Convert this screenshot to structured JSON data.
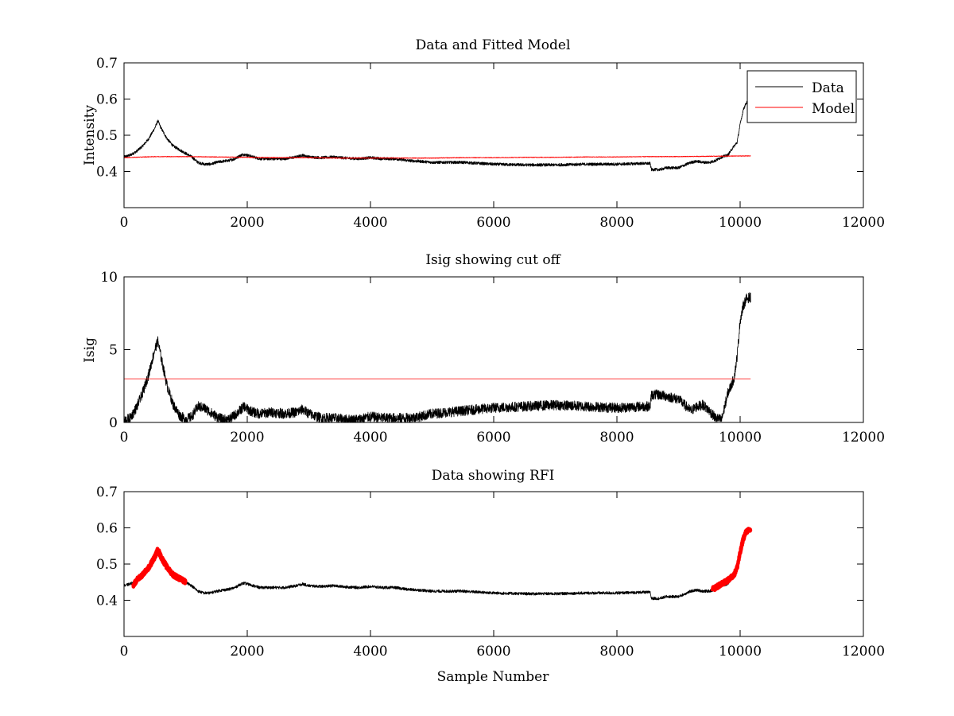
{
  "figure": {
    "colors": {
      "data": "#000000",
      "model": "#ff0000",
      "rfi": "#ff0000",
      "axes": "#000000",
      "background": "#ffffff"
    }
  },
  "chart_data": [
    {
      "type": "line",
      "title": "Data and Fitted Model",
      "xlabel": "",
      "ylabel": "Intensity",
      "xlim": [
        0,
        12000
      ],
      "ylim": [
        0.3,
        0.7
      ],
      "xticks": [
        0,
        2000,
        4000,
        6000,
        8000,
        10000,
        12000
      ],
      "yticks": [
        0.4,
        0.5,
        0.6,
        0.7
      ],
      "ytick_labels": [
        "0.4",
        "0.5",
        "0.6",
        "0.7"
      ],
      "legend": {
        "position": "top-right",
        "entries": [
          "Data",
          "Model"
        ]
      },
      "series": [
        {
          "name": "Data",
          "color": "#000000",
          "noise": 0.004,
          "x": [
            0,
            100,
            200,
            300,
            400,
            500,
            550,
            600,
            700,
            800,
            900,
            1000,
            1100,
            1200,
            1300,
            1400,
            1500,
            1600,
            1700,
            1800,
            1900,
            1950,
            2000,
            2100,
            2200,
            2400,
            2600,
            2800,
            2900,
            3000,
            3200,
            3400,
            3600,
            3800,
            4000,
            4200,
            4400,
            4600,
            4800,
            5000,
            5500,
            6000,
            6500,
            7000,
            7500,
            8000,
            8400,
            8540,
            8560,
            8700,
            8800,
            9000,
            9200,
            9300,
            9400,
            9500,
            9600,
            9700,
            9800,
            9900,
            9950,
            10000,
            10050,
            10100,
            10170
          ],
          "y": [
            0.44,
            0.445,
            0.455,
            0.47,
            0.49,
            0.52,
            0.54,
            0.52,
            0.49,
            0.47,
            0.46,
            0.45,
            0.44,
            0.425,
            0.42,
            0.42,
            0.425,
            0.428,
            0.43,
            0.435,
            0.445,
            0.447,
            0.445,
            0.44,
            0.435,
            0.435,
            0.435,
            0.44,
            0.445,
            0.44,
            0.438,
            0.44,
            0.437,
            0.435,
            0.438,
            0.435,
            0.435,
            0.43,
            0.428,
            0.425,
            0.425,
            0.42,
            0.418,
            0.418,
            0.42,
            0.42,
            0.422,
            0.422,
            0.405,
            0.405,
            0.41,
            0.41,
            0.425,
            0.428,
            0.425,
            0.425,
            0.43,
            0.44,
            0.445,
            0.47,
            0.48,
            0.53,
            0.57,
            0.59,
            0.595
          ]
        },
        {
          "name": "Model",
          "color": "#ff0000",
          "noise": 0.001,
          "x": [
            0,
            500,
            1000,
            1500,
            2000,
            2500,
            3000,
            3500,
            4000,
            4500,
            5000,
            5500,
            6000,
            6500,
            7000,
            7500,
            8000,
            8500,
            9000,
            9500,
            10170
          ],
          "y": [
            0.438,
            0.441,
            0.441,
            0.44,
            0.439,
            0.438,
            0.438,
            0.437,
            0.437,
            0.437,
            0.437,
            0.438,
            0.438,
            0.439,
            0.439,
            0.44,
            0.44,
            0.441,
            0.441,
            0.442,
            0.443
          ]
        }
      ]
    },
    {
      "type": "line",
      "title": "Isig showing cut off",
      "xlabel": "",
      "ylabel": "Isig",
      "xlim": [
        0,
        12000
      ],
      "ylim": [
        0,
        10
      ],
      "xticks": [
        0,
        2000,
        4000,
        6000,
        8000,
        10000,
        12000
      ],
      "yticks": [
        0,
        5,
        10
      ],
      "ytick_labels": [
        "0",
        "5",
        "10"
      ],
      "series": [
        {
          "color": "#000000",
          "noise": 0.35,
          "x": [
            0,
            100,
            200,
            300,
            400,
            500,
            550,
            600,
            700,
            800,
            900,
            1000,
            1100,
            1200,
            1300,
            1400,
            1500,
            1600,
            1700,
            1800,
            1900,
            1950,
            2000,
            2100,
            2200,
            2400,
            2600,
            2800,
            2900,
            3000,
            3200,
            3400,
            3600,
            3800,
            4000,
            4200,
            4400,
            4600,
            4800,
            5000,
            5500,
            6000,
            6500,
            7000,
            7500,
            8000,
            8400,
            8540,
            8560,
            8700,
            8800,
            9000,
            9200,
            9300,
            9400,
            9500,
            9600,
            9700,
            9800,
            9900,
            9950,
            10000,
            10050,
            10100,
            10170
          ],
          "y": [
            0.1,
            0.3,
            1.0,
            2.0,
            3.3,
            5.0,
            5.6,
            4.5,
            2.5,
            1.2,
            0.5,
            0.2,
            0.4,
            1.1,
            1.0,
            0.7,
            0.4,
            0.2,
            0.2,
            0.5,
            0.9,
            1.1,
            0.9,
            0.7,
            0.6,
            0.7,
            0.6,
            0.7,
            0.9,
            0.6,
            0.3,
            0.3,
            0.2,
            0.2,
            0.4,
            0.3,
            0.3,
            0.3,
            0.4,
            0.6,
            0.8,
            1.0,
            1.1,
            1.2,
            1.1,
            1.0,
            1.1,
            1.1,
            1.9,
            1.9,
            1.8,
            1.6,
            0.8,
            1.1,
            1.2,
            0.8,
            0.3,
            0.2,
            2.0,
            3.0,
            4.5,
            7.0,
            8.0,
            8.5,
            8.6
          ]
        },
        {
          "color": "#ff0000",
          "noise": 0,
          "x": [
            0,
            10170
          ],
          "y": [
            3.0,
            3.0
          ]
        }
      ]
    },
    {
      "type": "line",
      "title": "Data showing RFI",
      "xlabel": "Sample Number",
      "ylabel": "",
      "xlim": [
        0,
        12000
      ],
      "ylim": [
        0.3,
        0.7
      ],
      "xticks": [
        0,
        2000,
        4000,
        6000,
        8000,
        10000,
        12000
      ],
      "yticks": [
        0.4,
        0.5,
        0.6,
        0.7
      ],
      "ytick_labels": [
        "0.4",
        "0.5",
        "0.6",
        "0.7"
      ],
      "series": [
        {
          "color": "#000000",
          "noise": 0.004,
          "x": [
            0,
            100,
            200,
            300,
            400,
            500,
            550,
            600,
            700,
            800,
            900,
            1000,
            1100,
            1200,
            1300,
            1400,
            1500,
            1600,
            1700,
            1800,
            1900,
            1950,
            2000,
            2100,
            2200,
            2400,
            2600,
            2800,
            2900,
            3000,
            3200,
            3400,
            3600,
            3800,
            4000,
            4200,
            4400,
            4600,
            4800,
            5000,
            5500,
            6000,
            6500,
            7000,
            7500,
            8000,
            8400,
            8540,
            8560,
            8700,
            8800,
            9000,
            9200,
            9300,
            9400,
            9500,
            9600,
            9700,
            9800,
            9900,
            9950,
            10000,
            10050,
            10100,
            10170
          ],
          "y": [
            0.44,
            0.445,
            0.455,
            0.47,
            0.49,
            0.52,
            0.54,
            0.52,
            0.49,
            0.47,
            0.46,
            0.45,
            0.44,
            0.425,
            0.42,
            0.42,
            0.425,
            0.428,
            0.43,
            0.435,
            0.445,
            0.447,
            0.445,
            0.44,
            0.435,
            0.435,
            0.435,
            0.44,
            0.445,
            0.44,
            0.438,
            0.44,
            0.437,
            0.435,
            0.438,
            0.435,
            0.435,
            0.43,
            0.428,
            0.425,
            0.425,
            0.42,
            0.418,
            0.418,
            0.42,
            0.42,
            0.422,
            0.422,
            0.405,
            0.405,
            0.41,
            0.41,
            0.425,
            0.428,
            0.425,
            0.425,
            0.43,
            0.44,
            0.445,
            0.47,
            0.48,
            0.53,
            0.57,
            0.59,
            0.595
          ]
        },
        {
          "color": "#ff0000",
          "noise": 0.006,
          "x": [
            150,
            200,
            300,
            400,
            500,
            550,
            600,
            700,
            800,
            900,
            1000
          ],
          "y": [
            0.44,
            0.455,
            0.47,
            0.49,
            0.52,
            0.54,
            0.52,
            0.49,
            0.47,
            0.46,
            0.45
          ]
        },
        {
          "color": "#ff0000",
          "noise": 0.006,
          "x": [
            9550,
            9600,
            9700,
            9800,
            9900,
            9950,
            10000,
            10050,
            10100,
            10170
          ],
          "y": [
            0.43,
            0.435,
            0.445,
            0.455,
            0.47,
            0.49,
            0.53,
            0.57,
            0.59,
            0.595
          ]
        }
      ]
    }
  ]
}
